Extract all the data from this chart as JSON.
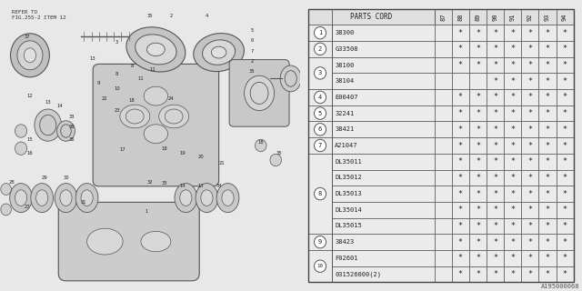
{
  "watermark": "A195000068",
  "refer_text": "REFER TO\nFIG.255-2 ITEM 12",
  "year_cols": [
    "87",
    "88",
    "89",
    "90",
    "91",
    "92",
    "93",
    "94"
  ],
  "rows": [
    {
      "num": "1",
      "code": "38300",
      "stars": [
        false,
        true,
        true,
        true,
        true,
        true,
        true,
        true
      ]
    },
    {
      "num": "2",
      "code": "G33508",
      "stars": [
        false,
        true,
        true,
        true,
        true,
        true,
        true,
        true
      ]
    },
    {
      "num": "3",
      "code": "38100",
      "stars": [
        false,
        true,
        true,
        true,
        true,
        true,
        true,
        true
      ]
    },
    {
      "num": "3",
      "code": "38104",
      "stars": [
        false,
        false,
        false,
        true,
        true,
        true,
        true,
        true
      ]
    },
    {
      "num": "4",
      "code": "E00407",
      "stars": [
        false,
        true,
        true,
        true,
        true,
        true,
        true,
        true
      ]
    },
    {
      "num": "5",
      "code": "32241",
      "stars": [
        false,
        true,
        true,
        true,
        true,
        true,
        true,
        true
      ]
    },
    {
      "num": "6",
      "code": "38421",
      "stars": [
        false,
        true,
        true,
        true,
        true,
        true,
        true,
        true
      ]
    },
    {
      "num": "7",
      "code": "A21047",
      "stars": [
        false,
        true,
        true,
        true,
        true,
        true,
        true,
        true
      ]
    },
    {
      "num": "8",
      "code": "DL35011",
      "stars": [
        false,
        true,
        true,
        true,
        true,
        true,
        true,
        true
      ]
    },
    {
      "num": "8",
      "code": "DL35012",
      "stars": [
        false,
        true,
        true,
        true,
        true,
        true,
        true,
        true
      ]
    },
    {
      "num": "8",
      "code": "DL35013",
      "stars": [
        false,
        true,
        true,
        true,
        true,
        true,
        true,
        true
      ]
    },
    {
      "num": "8",
      "code": "DL35014",
      "stars": [
        false,
        true,
        true,
        true,
        true,
        true,
        true,
        true
      ]
    },
    {
      "num": "8",
      "code": "DL35015",
      "stars": [
        false,
        true,
        true,
        true,
        true,
        true,
        true,
        true
      ]
    },
    {
      "num": "9",
      "code": "38423",
      "stars": [
        false,
        true,
        true,
        true,
        true,
        true,
        true,
        true
      ]
    },
    {
      "num": "10",
      "code": "F02601",
      "stars": [
        false,
        true,
        true,
        true,
        true,
        true,
        true,
        true
      ]
    },
    {
      "num": "10",
      "code": "031526000(2)",
      "stars": [
        false,
        true,
        true,
        true,
        true,
        true,
        true,
        true
      ]
    }
  ],
  "circle_groups": {
    "1": [
      0
    ],
    "2": [
      1
    ],
    "3": [
      2,
      3
    ],
    "4": [
      4
    ],
    "5": [
      5
    ],
    "6": [
      6
    ],
    "7": [
      7
    ],
    "8": [
      8,
      9,
      10,
      11,
      12
    ],
    "9": [
      13
    ],
    "10": [
      14,
      15
    ]
  },
  "bg_color": "#e8e8e8",
  "text_color": "#222222"
}
